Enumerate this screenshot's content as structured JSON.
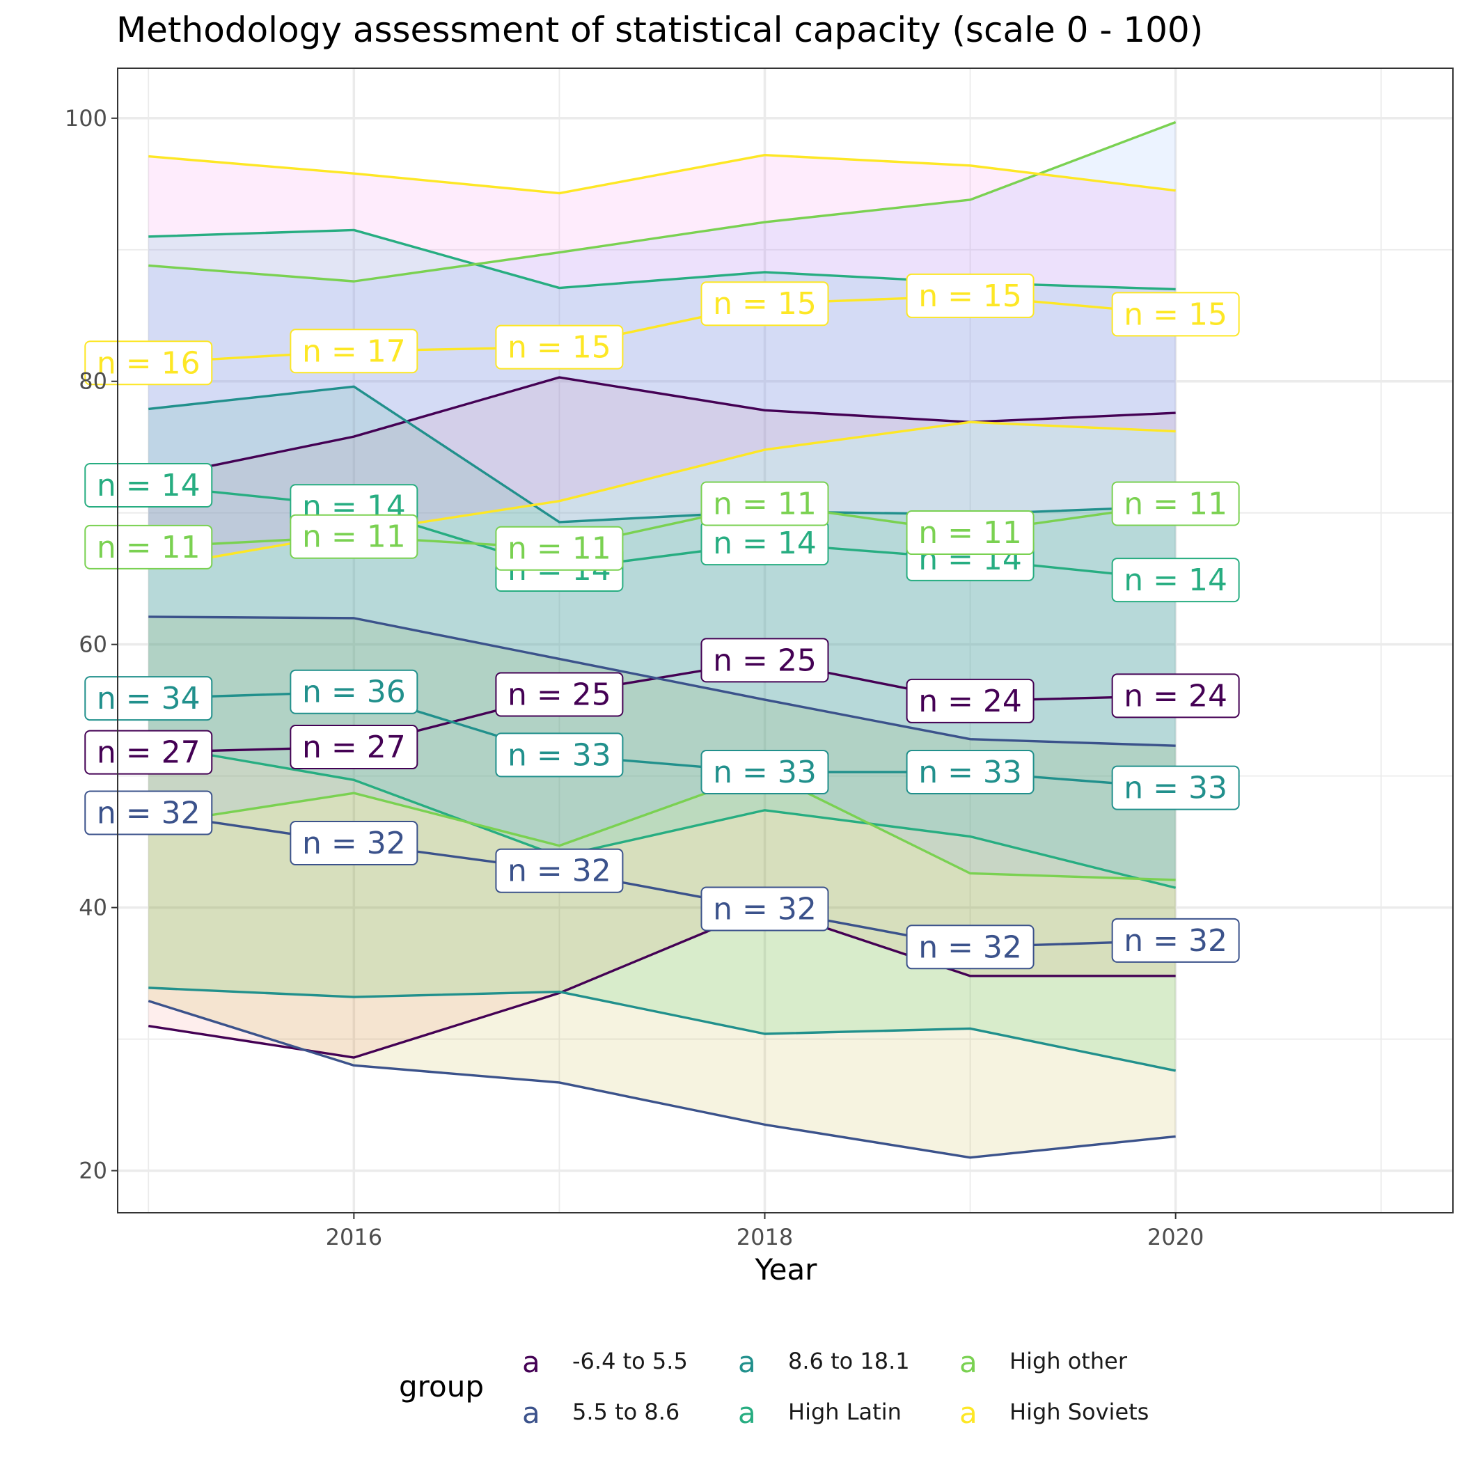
{
  "chart_data": {
    "type": "line",
    "title": "Methodology assessment of statistical capacity (scale 0 - 100)",
    "xlabel": "Year",
    "ylabel": "",
    "xlim": [
      2014.85,
      2021.35
    ],
    "ylim": [
      16.8,
      103.8
    ],
    "x_ticks": [
      2016,
      2018,
      2020
    ],
    "y_ticks": [
      20,
      40,
      60,
      80,
      100
    ],
    "grid": true,
    "legend": {
      "title": "group",
      "position": "bottom",
      "key_glyph": "a",
      "entries": [
        "-6.4 to 5.5",
        "5.5 to 8.6",
        "8.6 to 18.1",
        "High Latin",
        "High other",
        "High Soviets"
      ]
    },
    "x": [
      2015,
      2016,
      2017,
      2018,
      2019,
      2020
    ],
    "series": [
      {
        "name": "-6.4 to 5.5",
        "color": "#440154",
        "ribbon_fill": "#F8766D",
        "values": [
          51.8,
          52.2,
          56.2,
          58.8,
          55.7,
          56.1
        ],
        "lower": [
          31.0,
          28.6,
          33.5,
          40.0,
          34.8,
          34.8
        ],
        "upper": [
          72.6,
          75.8,
          80.3,
          77.8,
          76.9,
          77.6
        ],
        "counts": [
          "n = 27",
          "n = 27",
          "n = 25",
          "n = 25",
          "n = 24",
          "n = 24"
        ]
      },
      {
        "name": "5.5 to 8.6",
        "color": "#3B528B",
        "ribbon_fill": "#B79F00",
        "values": [
          47.2,
          44.9,
          42.8,
          39.9,
          37.0,
          37.5
        ],
        "lower": [
          32.9,
          28.0,
          26.7,
          23.5,
          21.0,
          22.6
        ],
        "upper": [
          62.1,
          62.0,
          58.9,
          55.8,
          52.8,
          52.3
        ],
        "counts": [
          "n = 32",
          "n = 32",
          "n = 32",
          "n = 32",
          "n = 32",
          "n = 32"
        ]
      },
      {
        "name": "8.6 to 18.1",
        "color": "#21908C",
        "ribbon_fill": "#00BA38",
        "values": [
          55.9,
          56.4,
          51.6,
          50.3,
          50.3,
          49.1
        ],
        "lower": [
          33.9,
          33.2,
          33.6,
          30.4,
          30.8,
          27.6
        ],
        "upper": [
          77.9,
          79.6,
          69.3,
          70.1,
          69.9,
          70.5
        ],
        "counts": [
          "n = 34",
          "n = 36",
          "n = 33",
          "n = 33",
          "n = 33",
          "n = 33"
        ]
      },
      {
        "name": "High Latin",
        "color": "#27AD81",
        "ribbon_fill": "#00BFC4",
        "values": [
          72.1,
          70.5,
          65.7,
          67.7,
          66.5,
          64.9
        ],
        "lower": [
          52.4,
          49.7,
          43.9,
          47.4,
          45.4,
          41.5
        ],
        "upper": [
          91.0,
          91.5,
          87.1,
          88.3,
          87.5,
          87.0
        ],
        "counts": [
          "n = 14",
          "n = 14",
          "n = 14",
          "n = 14",
          "n = 14",
          "n = 14"
        ]
      },
      {
        "name": "High other",
        "color": "#7AD151",
        "ribbon_fill": "#619CFF",
        "values": [
          67.4,
          68.2,
          67.3,
          70.7,
          68.5,
          70.7
        ],
        "lower": [
          46.3,
          48.7,
          44.7,
          50.3,
          42.6,
          42.1
        ],
        "upper": [
          88.8,
          87.6,
          89.8,
          92.1,
          93.8,
          99.7
        ],
        "counts": [
          "n = 11",
          "n = 11",
          "n = 11",
          "n = 11",
          "n = 11",
          "n = 11"
        ]
      },
      {
        "name": "High Soviets",
        "color": "#FDE725",
        "ribbon_fill": "#F564E3",
        "values": [
          81.4,
          82.3,
          82.6,
          85.9,
          86.5,
          85.1
        ],
        "lower": [
          65.8,
          68.5,
          70.9,
          74.8,
          76.9,
          76.2
        ],
        "upper": [
          97.1,
          95.8,
          94.3,
          97.2,
          96.4,
          94.5
        ],
        "counts": [
          "n = 16",
          "n = 17",
          "n = 15",
          "n = 15",
          "n = 15",
          "n = 15"
        ]
      }
    ]
  }
}
